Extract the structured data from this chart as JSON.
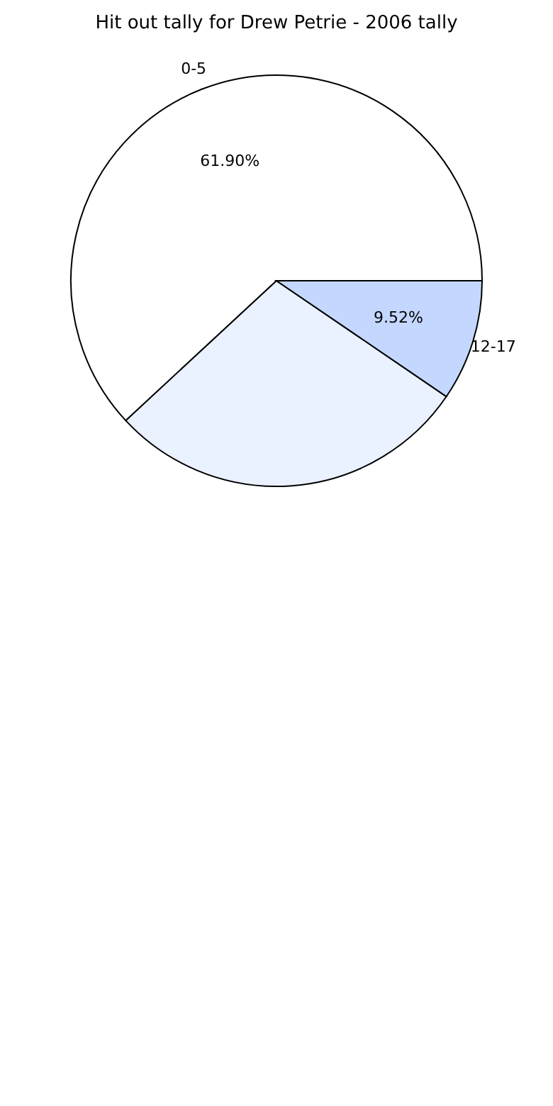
{
  "chart_data": {
    "type": "pie",
    "title": "Hit out tally for Drew Petrie - 2006 tally",
    "categories": [
      "0-5",
      null,
      "12-17"
    ],
    "values": [
      61.9,
      28.58,
      9.52
    ],
    "colors": [
      "#ffffff",
      "#eaf1ff",
      "#c4d8ff"
    ],
    "value_labels": [
      "61.90%",
      null,
      "9.52%"
    ],
    "legend": false
  }
}
